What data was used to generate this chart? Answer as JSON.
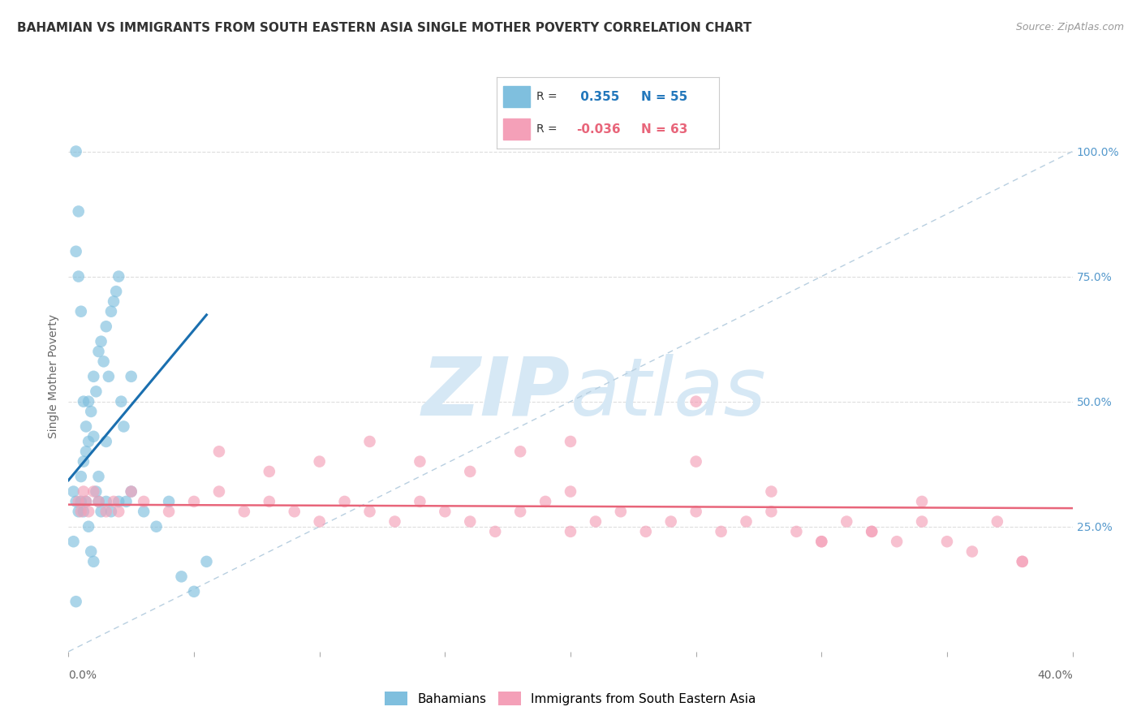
{
  "title": "BAHAMIAN VS IMMIGRANTS FROM SOUTH EASTERN ASIA SINGLE MOTHER POVERTY CORRELATION CHART",
  "source": "Source: ZipAtlas.com",
  "ylabel": "Single Mother Poverty",
  "ylabel_right_ticks": [
    "100.0%",
    "75.0%",
    "50.0%",
    "25.0%"
  ],
  "ylabel_right_vals": [
    1.0,
    0.75,
    0.5,
    0.25
  ],
  "xlim": [
    0.0,
    0.4
  ],
  "ylim": [
    0.0,
    1.1
  ],
  "blue_R": 0.355,
  "blue_N": 55,
  "pink_R": -0.036,
  "pink_N": 63,
  "blue_color": "#7fbfde",
  "pink_color": "#f4a0b8",
  "blue_line_color": "#1a6faf",
  "pink_line_color": "#e8657a",
  "dashed_line_color": "#b8cfe0",
  "grid_color": "#dddddd",
  "background_color": "#ffffff",
  "watermark_zip": "ZIP",
  "watermark_atlas": "atlas",
  "watermark_color": "#d6e8f5",
  "blue_scatter_x": [
    0.002,
    0.003,
    0.004,
    0.005,
    0.005,
    0.006,
    0.006,
    0.007,
    0.007,
    0.008,
    0.008,
    0.009,
    0.01,
    0.01,
    0.011,
    0.012,
    0.012,
    0.013,
    0.014,
    0.015,
    0.015,
    0.016,
    0.017,
    0.018,
    0.019,
    0.02,
    0.021,
    0.022,
    0.023,
    0.025,
    0.003,
    0.004,
    0.005,
    0.006,
    0.007,
    0.008,
    0.009,
    0.01,
    0.011,
    0.012,
    0.013,
    0.015,
    0.017,
    0.02,
    0.025,
    0.03,
    0.035,
    0.04,
    0.045,
    0.05,
    0.055,
    0.003,
    0.004,
    0.002,
    0.003
  ],
  "blue_scatter_y": [
    0.32,
    0.3,
    0.28,
    0.35,
    0.3,
    0.38,
    0.28,
    0.4,
    0.45,
    0.42,
    0.5,
    0.48,
    0.55,
    0.43,
    0.52,
    0.6,
    0.35,
    0.62,
    0.58,
    0.65,
    0.42,
    0.55,
    0.68,
    0.7,
    0.72,
    0.75,
    0.5,
    0.45,
    0.3,
    0.55,
    0.8,
    0.75,
    0.68,
    0.5,
    0.3,
    0.25,
    0.2,
    0.18,
    0.32,
    0.3,
    0.28,
    0.3,
    0.28,
    0.3,
    0.32,
    0.28,
    0.25,
    0.3,
    0.15,
    0.12,
    0.18,
    1.0,
    0.88,
    0.22,
    0.1
  ],
  "pink_scatter_x": [
    0.004,
    0.005,
    0.006,
    0.007,
    0.008,
    0.01,
    0.012,
    0.015,
    0.018,
    0.02,
    0.025,
    0.03,
    0.04,
    0.05,
    0.06,
    0.07,
    0.08,
    0.09,
    0.1,
    0.11,
    0.12,
    0.13,
    0.14,
    0.15,
    0.16,
    0.17,
    0.18,
    0.19,
    0.2,
    0.21,
    0.22,
    0.23,
    0.24,
    0.25,
    0.26,
    0.27,
    0.28,
    0.29,
    0.3,
    0.31,
    0.32,
    0.33,
    0.34,
    0.35,
    0.36,
    0.37,
    0.38,
    0.06,
    0.08,
    0.1,
    0.12,
    0.14,
    0.16,
    0.18,
    0.2,
    0.25,
    0.28,
    0.3,
    0.32,
    0.34,
    0.38,
    0.25,
    0.2
  ],
  "pink_scatter_y": [
    0.3,
    0.28,
    0.32,
    0.3,
    0.28,
    0.32,
    0.3,
    0.28,
    0.3,
    0.28,
    0.32,
    0.3,
    0.28,
    0.3,
    0.32,
    0.28,
    0.3,
    0.28,
    0.26,
    0.3,
    0.28,
    0.26,
    0.3,
    0.28,
    0.26,
    0.24,
    0.28,
    0.3,
    0.24,
    0.26,
    0.28,
    0.24,
    0.26,
    0.28,
    0.24,
    0.26,
    0.28,
    0.24,
    0.22,
    0.26,
    0.24,
    0.22,
    0.26,
    0.22,
    0.2,
    0.26,
    0.18,
    0.4,
    0.36,
    0.38,
    0.42,
    0.38,
    0.36,
    0.4,
    0.32,
    0.5,
    0.32,
    0.22,
    0.24,
    0.3,
    0.18,
    0.38,
    0.42
  ],
  "legend_label_blue": "Bahamians",
  "legend_label_pink": "Immigrants from South Eastern Asia"
}
